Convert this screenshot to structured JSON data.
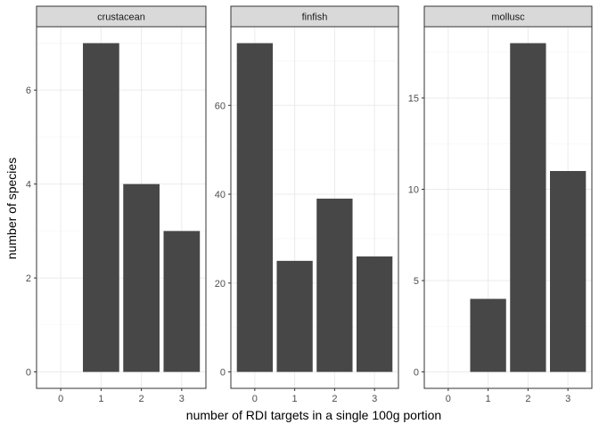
{
  "chart_data": {
    "type": "bar",
    "xlabel": "number of RDI targets in a single 100g portion",
    "ylabel": "number of species",
    "categories": [
      "0",
      "1",
      "2",
      "3"
    ],
    "grid": true,
    "bar_color": "#474747",
    "panel_border_color": "#333333",
    "strip_fill": "#d9d9d9",
    "grid_major_color": "#ebebeb",
    "grid_minor_color": "#f5f5f5",
    "facets": [
      {
        "name": "crustacean",
        "values": [
          0,
          7,
          4,
          3
        ],
        "ylim": [
          -0.35,
          7.35
        ],
        "yticks": [
          0,
          2,
          4,
          6
        ]
      },
      {
        "name": "finfish",
        "values": [
          74,
          25,
          39,
          26
        ],
        "ylim": [
          -3.7,
          77.7
        ],
        "yticks": [
          0,
          20,
          40,
          60
        ]
      },
      {
        "name": "mollusc",
        "values": [
          0,
          4,
          18,
          11
        ],
        "ylim": [
          -0.9,
          18.9
        ],
        "yticks": [
          0,
          5,
          10,
          15
        ]
      }
    ]
  }
}
